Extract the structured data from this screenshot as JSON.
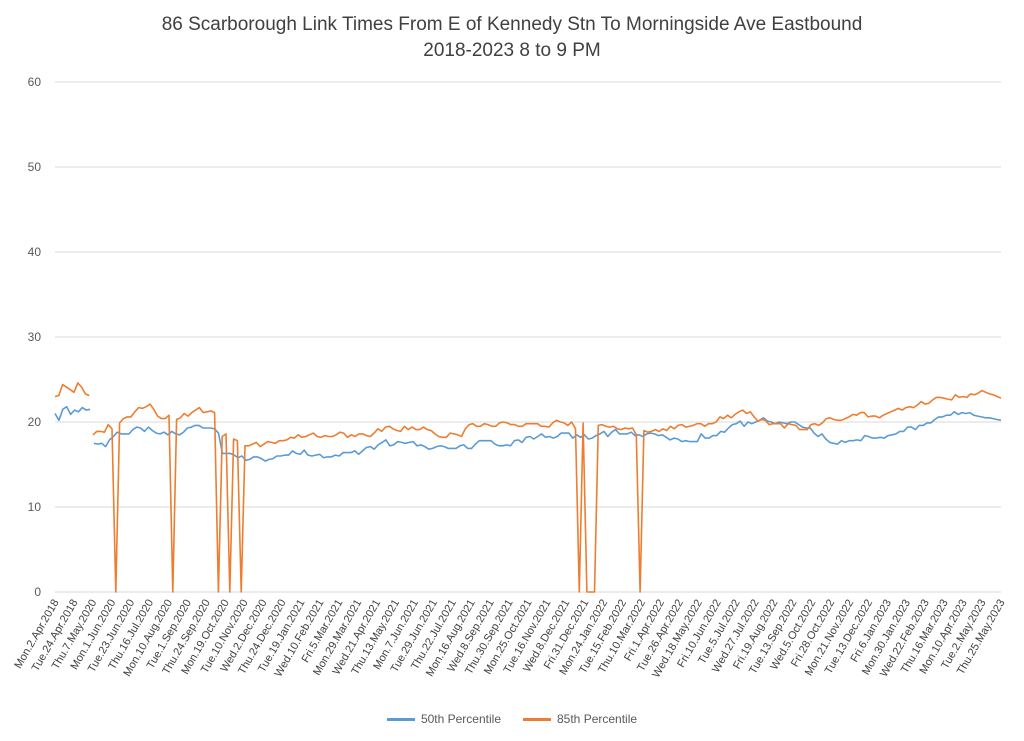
{
  "chart_data": {
    "type": "line",
    "title": "86 Scarborough Link Times From E of Kennedy Stn To Morningside Ave Eastbound",
    "subtitle": "2018-2023 8 to 9 PM",
    "xlabel": "",
    "ylabel": "",
    "ylim": [
      0,
      60
    ],
    "y_ticks": [
      0,
      10,
      20,
      30,
      40,
      50,
      60
    ],
    "grid": "horizontal",
    "legend_position": "bottom",
    "x_tick_labels": [
      "Mon.2.Apr.2018",
      "Tue.24.Apr.2018",
      "Thu.7.May.2020",
      "Mon.1.Jun.2020",
      "Tue.23.Jun.2020",
      "Thu.16.Jul.2020",
      "Mon.10.Aug.2020",
      "Tue.1.Sep.2020",
      "Thu.24.Sep.2020",
      "Mon.19.Oct.2020",
      "Tue.10.Nov.2020",
      "Wed.2.Dec.2020",
      "Thu.24.Dec.2020",
      "Tue.19.Jan.2021",
      "Wed.10.Feb.2021",
      "Fri.5.Mar.2021",
      "Mon.29.Mar.2021",
      "Wed.21.Apr.2021",
      "Thu.13.May.2021",
      "Mon.7.Jun.2021",
      "Tue.29.Jun.2021",
      "Thu.22.Jul.2021",
      "Mon.16.Aug.2021",
      "Wed.8.Sep.2021",
      "Thu.30.Sep.2021",
      "Mon.25.Oct.2021",
      "Tue.16.Nov.2021",
      "Wed.8.Dec.2021",
      "Fri.31.Dec.2021",
      "Mon.24.Jan.2022",
      "Tue.15.Feb.2022",
      "Thu.10.Mar.2022",
      "Fri.1.Apr.2022",
      "Tue.26.Apr.2022",
      "Wed.18.May.2022",
      "Fri.10.Jun.2022",
      "Tue.5.Jul.2022",
      "Wed.27.Jul.2022",
      "Fri.19.Aug.2022",
      "Tue.13.Sep.2022",
      "Wed.5.Oct.2022",
      "Fri.28.Oct.2022",
      "Mon.21.Nov.2022",
      "Tue.13.Dec.2022",
      "Fri.6.Jan.2023",
      "Mon.30.Jan.2023",
      "Wed.22.Feb.2023",
      "Thu.16.Mar.2023",
      "Mon.10.Apr.2023",
      "Tue.2.May.2023",
      "Thu.25.May.2023"
    ],
    "series": [
      {
        "name": "50th Percentile",
        "color": "#5B9BD5",
        "values": [
          21.0,
          20.2,
          21.5,
          21.8,
          20.9,
          21.4,
          21.2,
          21.7,
          21.4,
          21.5,
          17.5,
          17.4,
          17.5,
          17.1,
          17.9,
          18.3,
          18.8,
          18.6,
          18.6,
          18.6,
          19.1,
          19.4,
          19.3,
          18.9,
          19.4,
          19.0,
          18.7,
          18.6,
          18.8,
          18.5,
          18.9,
          18.6,
          18.5,
          18.8,
          19.3,
          19.4,
          19.6,
          19.6,
          19.3,
          19.3,
          19.3,
          19.2,
          18.7,
          16.3,
          16.3,
          16.3,
          16.1,
          15.8,
          16.0,
          15.5,
          15.6,
          15.9,
          15.9,
          15.7,
          15.4,
          15.6,
          15.7,
          16.0,
          16.0,
          16.1,
          16.1,
          16.6,
          16.3,
          16.2,
          16.7,
          16.1,
          16.0,
          16.1,
          16.2,
          15.8,
          15.9,
          15.9,
          16.1,
          16.0,
          16.4,
          16.4,
          16.4,
          16.6,
          16.2,
          16.6,
          17.0,
          17.1,
          16.8,
          17.3,
          17.6,
          17.9,
          17.2,
          17.3,
          17.7,
          17.6,
          17.5,
          17.6,
          17.7,
          17.2,
          17.3,
          17.1,
          16.8,
          16.9,
          17.1,
          17.2,
          17.1,
          16.9,
          16.9,
          16.9,
          17.2,
          17.3,
          16.9,
          16.9,
          17.4,
          17.8,
          17.8,
          17.8,
          17.8,
          17.4,
          17.2,
          17.2,
          17.3,
          17.2,
          17.8,
          17.9,
          17.6,
          18.2,
          18.3,
          18.0,
          18.3,
          18.6,
          18.2,
          18.3,
          18.1,
          18.3,
          18.7,
          18.7,
          18.7,
          18.1,
          18.5,
          18.2,
          18.5,
          18.0,
          18.1,
          18.4,
          18.6,
          18.9,
          18.3,
          18.8,
          19.1,
          18.6,
          18.6,
          18.6,
          18.8,
          18.4,
          18.5,
          18.3,
          18.6,
          18.7,
          18.6,
          18.4,
          18.5,
          18.2,
          17.9,
          18.1,
          18.0,
          17.7,
          17.8,
          17.7,
          17.7,
          17.7,
          18.6,
          18.1,
          18.1,
          18.4,
          18.4,
          18.9,
          18.8,
          19.3,
          19.7,
          19.8,
          20.1,
          19.5,
          20.0,
          19.8,
          20.0,
          20.2,
          20.5,
          20.1,
          20.0,
          19.8,
          20.0,
          19.9,
          19.8,
          20.0,
          20.0,
          19.7,
          19.4,
          19.3,
          19.3,
          18.7,
          18.3,
          18.6,
          18.0,
          17.6,
          17.5,
          17.4,
          17.8,
          17.6,
          17.8,
          17.8,
          17.9,
          17.8,
          18.4,
          18.3,
          18.1,
          18.1,
          18.2,
          18.1,
          18.4,
          18.5,
          18.6,
          18.9,
          18.9,
          19.4,
          19.4,
          19.1,
          19.6,
          19.6,
          19.9,
          19.9,
          20.3,
          20.6,
          20.6,
          20.8,
          20.8,
          21.2,
          20.9,
          21.1,
          21.0,
          21.1,
          20.8,
          20.7,
          20.6,
          20.5,
          20.5,
          20.4,
          20.3,
          20.2
        ]
      },
      {
        "name": "85th Percentile",
        "color": "#ED7D31",
        "values": [
          23.0,
          23.1,
          24.4,
          24.1,
          23.8,
          23.5,
          24.6,
          24.1,
          23.3,
          23.1,
          18.5,
          18.9,
          18.9,
          18.8,
          19.7,
          19.2,
          0.0,
          19.9,
          20.4,
          20.6,
          20.6,
          21.2,
          21.7,
          21.6,
          21.8,
          22.1,
          21.5,
          20.7,
          20.4,
          20.4,
          20.8,
          0.0,
          20.3,
          20.5,
          21.0,
          20.7,
          21.1,
          21.4,
          21.7,
          21.1,
          21.2,
          21.3,
          21.1,
          0.0,
          18.3,
          18.6,
          0.0,
          18.0,
          17.8,
          0.0,
          17.2,
          17.2,
          17.4,
          17.6,
          17.1,
          17.4,
          17.7,
          17.6,
          17.5,
          17.8,
          17.8,
          17.9,
          18.2,
          18.1,
          18.5,
          18.2,
          18.3,
          18.5,
          18.7,
          18.3,
          18.2,
          18.4,
          18.3,
          18.3,
          18.5,
          18.8,
          18.7,
          18.2,
          18.5,
          18.3,
          18.6,
          18.6,
          18.4,
          18.3,
          18.7,
          19.2,
          18.9,
          19.4,
          19.5,
          19.2,
          19.0,
          18.9,
          19.5,
          19.1,
          19.4,
          19.1,
          19.1,
          19.4,
          19.1,
          19.0,
          18.6,
          18.3,
          18.2,
          18.2,
          18.7,
          18.6,
          18.5,
          18.3,
          19.2,
          19.7,
          19.8,
          19.5,
          19.5,
          19.8,
          19.7,
          19.5,
          19.5,
          19.9,
          20.0,
          19.9,
          19.7,
          19.7,
          19.5,
          19.5,
          19.8,
          19.8,
          19.8,
          19.8,
          19.5,
          19.5,
          19.4,
          19.9,
          20.2,
          20.0,
          19.9,
          19.6,
          20.0,
          19.2,
          0.0,
          19.9,
          0.0,
          0.0,
          0.0,
          19.6,
          19.7,
          19.5,
          19.4,
          19.5,
          19.2,
          19.1,
          19.3,
          19.2,
          19.3,
          18.5,
          0.0,
          19.0,
          18.8,
          18.9,
          19.1,
          18.9,
          19.2,
          19.0,
          19.5,
          19.2,
          19.6,
          19.7,
          19.4,
          19.5,
          19.6,
          19.8,
          19.8,
          19.5,
          19.8,
          19.8,
          20.0,
          20.6,
          20.4,
          20.8,
          20.5,
          20.9,
          21.2,
          21.4,
          21.0,
          21.2,
          20.6,
          20.1,
          20.3,
          20.2,
          19.7,
          19.8,
          19.8,
          19.8,
          19.3,
          19.8,
          19.7,
          19.6,
          19.1,
          19.1,
          19.1,
          19.7,
          19.8,
          19.6,
          19.9,
          20.4,
          20.5,
          20.3,
          20.2,
          20.2,
          20.4,
          20.6,
          20.9,
          20.8,
          21.1,
          21.1,
          20.6,
          20.7,
          20.7,
          20.5,
          20.8,
          21.0,
          21.2,
          21.4,
          21.6,
          21.4,
          21.7,
          21.8,
          21.7,
          22.0,
          22.4,
          22.1,
          22.2,
          22.6,
          22.9,
          22.9,
          22.8,
          22.7,
          22.6,
          23.2,
          22.9,
          23.0,
          22.9,
          23.3,
          23.2,
          23.4,
          23.7,
          23.5,
          23.3,
          23.2,
          23.0,
          22.8
        ]
      }
    ]
  }
}
